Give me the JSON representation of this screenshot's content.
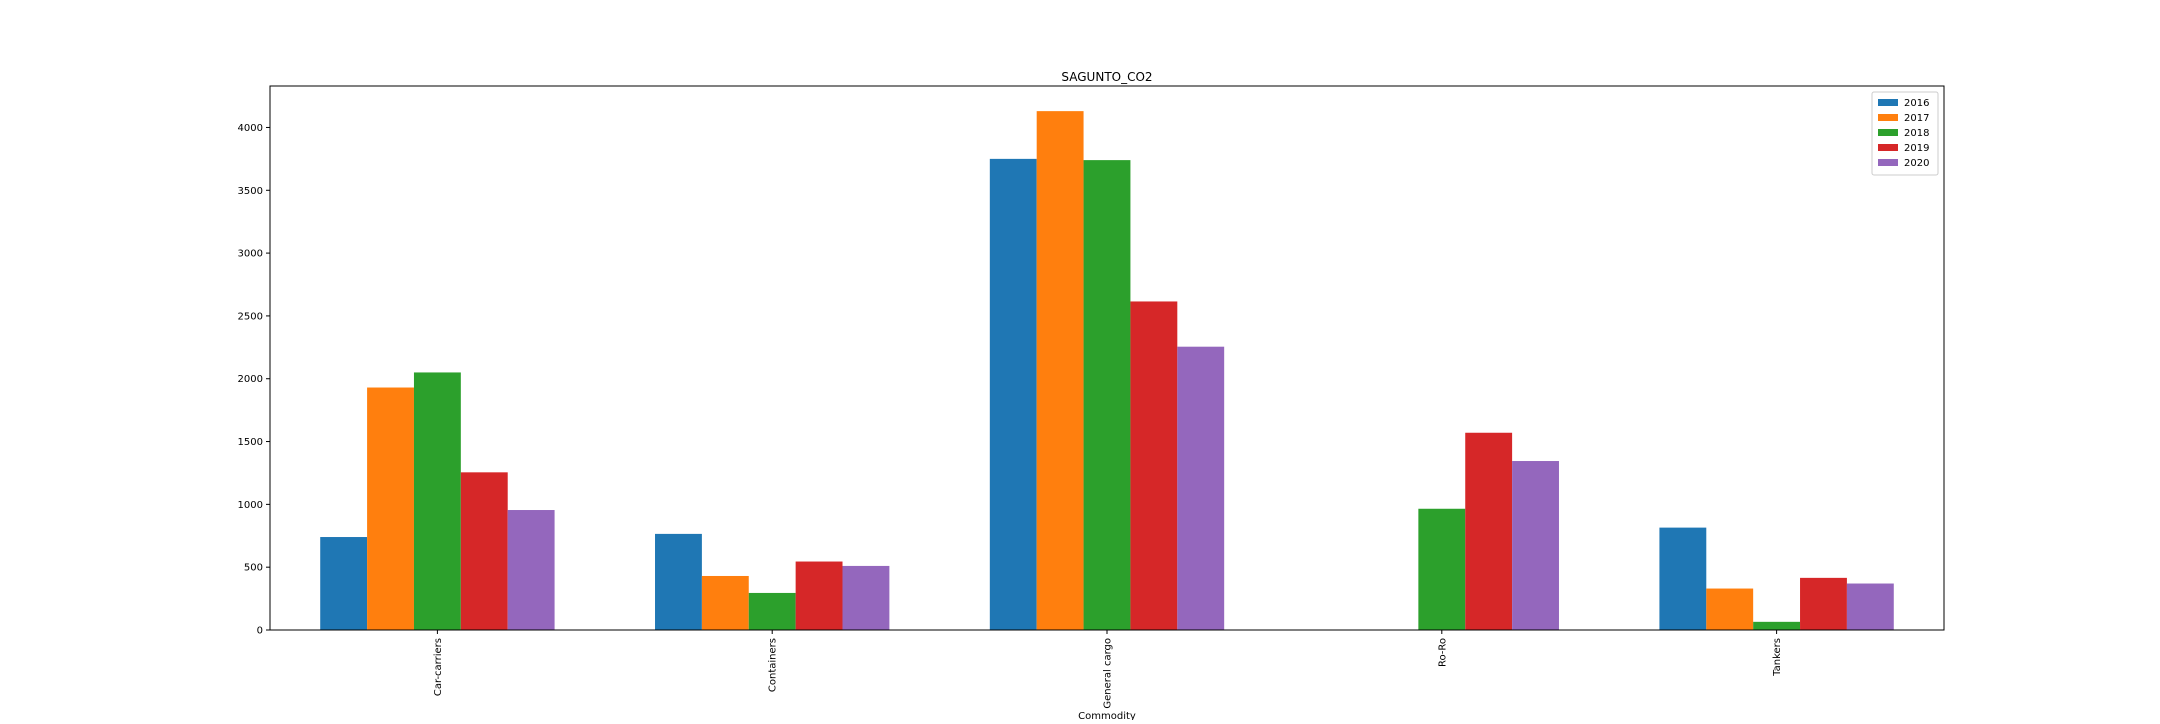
{
  "chart_data": {
    "type": "bar",
    "title": "SAGUNTO_CO2",
    "xlabel": "Commodity",
    "ylabel": "",
    "categories": [
      "Car-carriers",
      "Containers",
      "General cargo",
      "Ro-Ro",
      "Tankers"
    ],
    "series": [
      {
        "name": "2016",
        "color": "#1f77b4",
        "values": [
          740,
          765,
          3750,
          0,
          815
        ]
      },
      {
        "name": "2017",
        "color": "#ff7f0e",
        "values": [
          1930,
          430,
          4130,
          0,
          330
        ]
      },
      {
        "name": "2018",
        "color": "#2ca02c",
        "values": [
          2050,
          295,
          3740,
          965,
          65
        ]
      },
      {
        "name": "2019",
        "color": "#d62728",
        "values": [
          1255,
          545,
          2615,
          1570,
          415
        ]
      },
      {
        "name": "2020",
        "color": "#9467bd",
        "values": [
          955,
          510,
          2255,
          1345,
          370
        ]
      }
    ],
    "ylim": [
      0,
      4330
    ],
    "yticks": [
      0,
      500,
      1000,
      1500,
      2000,
      2500,
      3000,
      3500,
      4000
    ],
    "grid": false,
    "legend": "upper right"
  }
}
